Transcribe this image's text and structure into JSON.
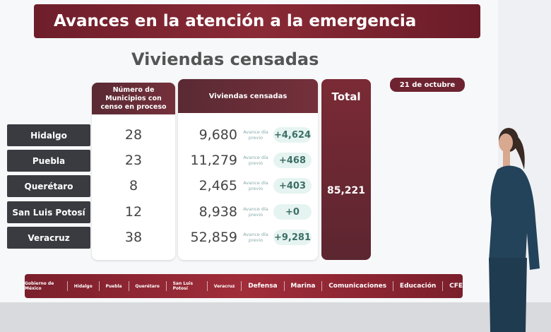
{
  "banner_title": "Avances en la atención a la emergencia",
  "subtitle": "Viviendas censadas",
  "date": "21 de octubre",
  "headers": {
    "municipios": "Número de Municipios con censo en proceso",
    "viviendas": "Viviendas censadas",
    "total": "Total"
  },
  "avance_label": "Avance día previo",
  "rows": [
    {
      "state": "Hidalgo",
      "municipios": "28",
      "viviendas": "9,680",
      "avance": "+4,624"
    },
    {
      "state": "Puebla",
      "municipios": "23",
      "viviendas": "11,279",
      "avance": "+468"
    },
    {
      "state": "Querétaro",
      "municipios": "8",
      "viviendas": "2,465",
      "avance": "+403"
    },
    {
      "state": "San Luis Potosí",
      "municipios": "12",
      "viviendas": "8,938",
      "avance": "+0"
    },
    {
      "state": "Veracruz",
      "municipios": "38",
      "viviendas": "52,859",
      "avance": "+9,281"
    }
  ],
  "total": "85,221",
  "footer_logos": [
    "Gobierno de México",
    "Hidalgo",
    "Puebla",
    "Querétaro",
    "San Luis Potosí",
    "Veracruz",
    "Defensa",
    "Marina",
    "Comunicaciones",
    "Educación",
    "CFE"
  ],
  "colors": {
    "maroon": "#6e1e2b",
    "state_label": "#3a3b40",
    "pill": "#e6f4f1"
  }
}
